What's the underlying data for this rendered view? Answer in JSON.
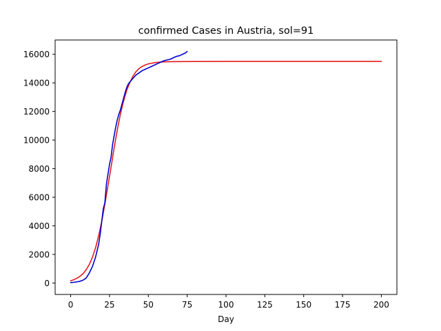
{
  "chart_data": {
    "type": "line",
    "title": "confirmed Cases in Austria, sol=91",
    "xlabel": "Day",
    "ylabel": "",
    "xlim": [
      -10,
      210
    ],
    "ylim": [
      -800,
      17000
    ],
    "xticks": [
      0,
      25,
      50,
      75,
      100,
      125,
      150,
      175,
      200
    ],
    "yticks": [
      0,
      2000,
      4000,
      6000,
      8000,
      10000,
      12000,
      14000,
      16000
    ],
    "grid": false,
    "legend": "none",
    "series": [
      {
        "color": "#e31a1c",
        "x": [
          0,
          2,
          4,
          6,
          8,
          10,
          12,
          14,
          16,
          18,
          20,
          22,
          24,
          26,
          28,
          30,
          32,
          34,
          36,
          38,
          40,
          42,
          44,
          46,
          48,
          50,
          55,
          60,
          65,
          70,
          80,
          100,
          125,
          150,
          175,
          200
        ],
        "y": [
          150,
          230,
          330,
          470,
          660,
          930,
          1300,
          1800,
          2450,
          3300,
          4300,
          5500,
          6800,
          8100,
          9450,
          10700,
          11800,
          12700,
          13450,
          14000,
          14450,
          14780,
          15000,
          15150,
          15250,
          15330,
          15430,
          15470,
          15485,
          15490,
          15495,
          15500,
          15500,
          15500,
          15500,
          15500
        ]
      },
      {
        "color": "#0000cc",
        "x": [
          0,
          2,
          4,
          6,
          8,
          10,
          12,
          14,
          16,
          18,
          19,
          20,
          21,
          22,
          23,
          24,
          25,
          26,
          27,
          28,
          29,
          30,
          31,
          32,
          33,
          34,
          35,
          36,
          37,
          38,
          40,
          42,
          44,
          46,
          48,
          50,
          52,
          54,
          56,
          58,
          60,
          62,
          64,
          66,
          68,
          70,
          72,
          74,
          75
        ],
        "y": [
          30,
          50,
          80,
          120,
          200,
          350,
          700,
          1150,
          1800,
          2700,
          3400,
          4300,
          5200,
          5600,
          6900,
          7600,
          8300,
          8800,
          9700,
          10300,
          10900,
          11400,
          11800,
          12100,
          12500,
          12900,
          13300,
          13650,
          13900,
          14050,
          14300,
          14550,
          14700,
          14850,
          14950,
          15050,
          15150,
          15250,
          15350,
          15450,
          15550,
          15600,
          15650,
          15750,
          15850,
          15900,
          16000,
          16100,
          16200
        ]
      }
    ]
  }
}
